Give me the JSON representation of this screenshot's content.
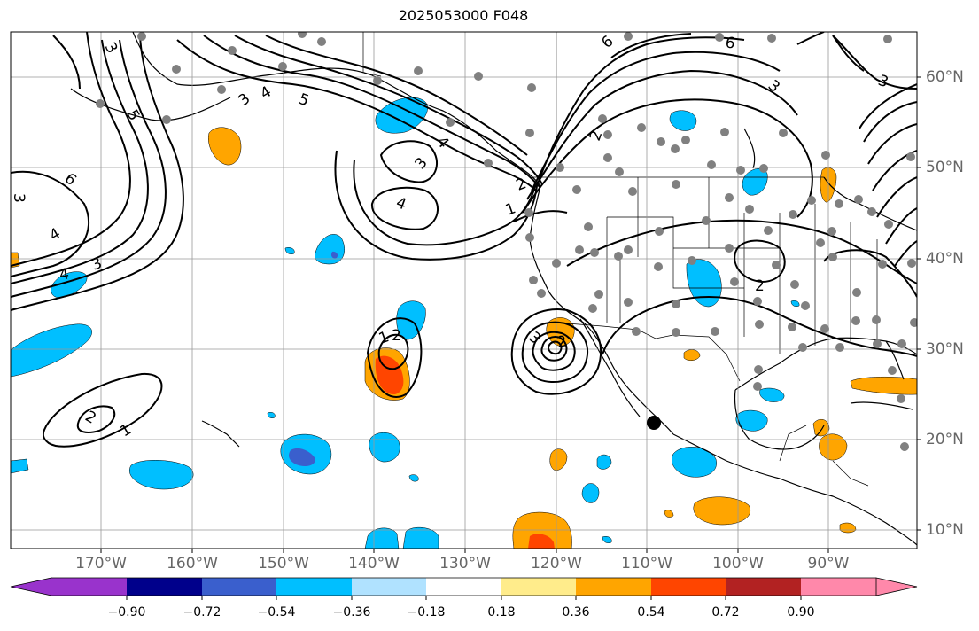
{
  "title": "2025053000 F048",
  "lon_labels": [
    "170°W",
    "160°W",
    "150°W",
    "140°W",
    "130°W",
    "120°W",
    "110°W",
    "100°W",
    "90°W"
  ],
  "lat_labels": [
    "60°N",
    "50°N",
    "40°N",
    "30°N",
    "20°N",
    "10°N"
  ],
  "colorbar": {
    "tick_labels": [
      "−0.90",
      "−0.72",
      "−0.54",
      "−0.36",
      "−0.18",
      "0.18",
      "0.36",
      "0.54",
      "0.72",
      "0.90"
    ],
    "colors": [
      "#9933cc",
      "#00008b",
      "#3a5fcd",
      "#00bfff",
      "#b0e2ff",
      "#ffffff",
      "#ffec8b",
      "#ffa500",
      "#ff4500",
      "#b22222",
      "#ff88aa"
    ]
  },
  "fill_colors": {
    "light_blue": "#00bfff",
    "mid_blue": "#3a5fcd",
    "orange": "#ffa500",
    "red_orange": "#ff4500"
  },
  "contour_labels": [
    "1",
    "2",
    "3",
    "4",
    "5",
    "6"
  ],
  "grid_color": "#999999",
  "station_marker_color": "#808080",
  "storm_marker_color": "#000000"
}
